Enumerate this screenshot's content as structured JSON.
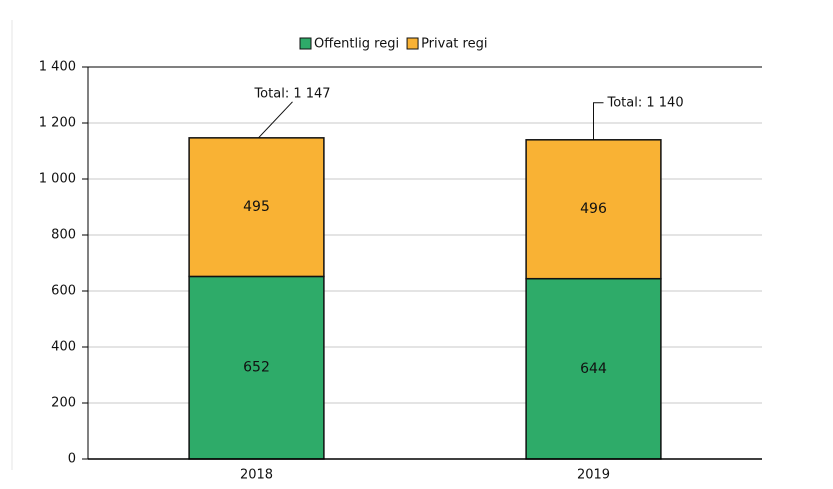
{
  "chart_data": {
    "type": "stacked_bar",
    "categories": [
      "2018",
      "2019"
    ],
    "series": [
      {
        "name": "Offentlig regi",
        "color": "#2eab69",
        "values": [
          652,
          644
        ]
      },
      {
        "name": "Privat regi",
        "color": "#f9b234",
        "values": [
          495,
          496
        ]
      }
    ],
    "annotations": [
      "Total: 1 147",
      "Total: 1 140"
    ],
    "ylim": [
      0,
      1400
    ],
    "yticks": [
      0,
      200,
      400,
      600,
      800,
      {
        "value": 1000,
        "label": "1 000"
      },
      {
        "value": 1200,
        "label": "1 200"
      },
      {
        "value": 1400,
        "label": "1 400"
      }
    ],
    "grid": true,
    "legend": "top"
  }
}
